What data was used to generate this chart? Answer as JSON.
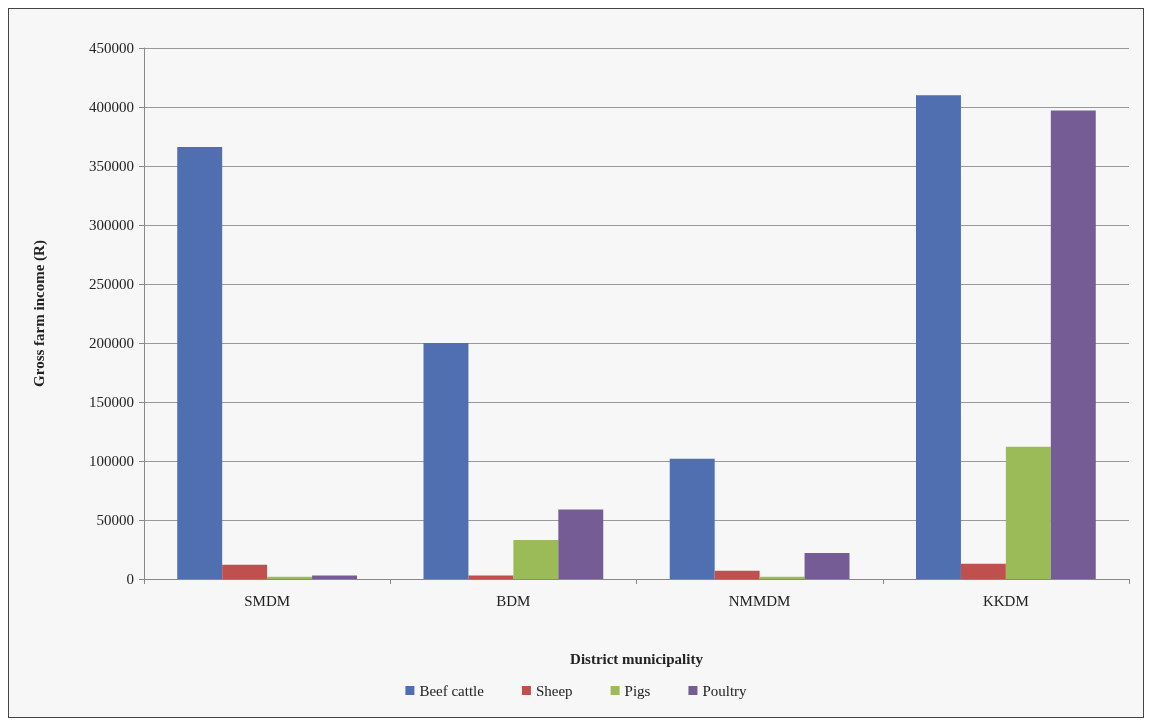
{
  "chart_data": {
    "type": "bar",
    "xlabel": "District municipality",
    "ylabel": "Gross farm income (R)",
    "categories": [
      "SMDM",
      "BDM",
      "NMMDM",
      "KKDM"
    ],
    "series": [
      {
        "name": "Beef cattle",
        "color": "#4f6fb0",
        "values": [
          366000,
          200000,
          102000,
          410000
        ]
      },
      {
        "name": "Sheep",
        "color": "#c0504d",
        "values": [
          12000,
          3000,
          7000,
          13000
        ]
      },
      {
        "name": "Pigs",
        "color": "#9bbb59",
        "values": [
          2000,
          33000,
          2000,
          112000
        ]
      },
      {
        "name": "Poultry",
        "color": "#765c94",
        "values": [
          3000,
          59000,
          22000,
          397000
        ]
      }
    ],
    "ylim": [
      0,
      450000
    ],
    "yticks": [
      0,
      50000,
      100000,
      150000,
      200000,
      250000,
      300000,
      350000,
      400000,
      450000
    ],
    "grid": "y",
    "legend": "bottom"
  }
}
